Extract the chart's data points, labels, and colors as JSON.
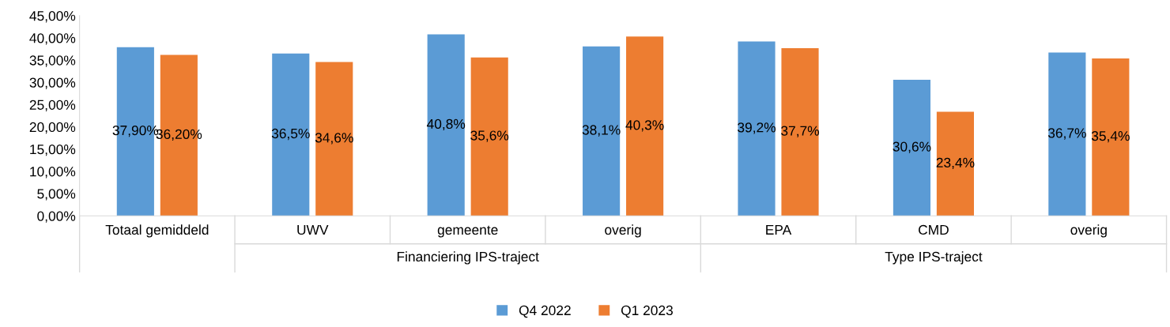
{
  "chart_data": {
    "type": "bar",
    "categories": [
      "Totaal gemiddeld",
      "UWV",
      "gemeente",
      "overig",
      "EPA",
      "CMD",
      "overig"
    ],
    "series": [
      {
        "name": "Q4 2022",
        "color": "#5b9bd5",
        "values": [
          37.9,
          36.5,
          40.8,
          38.1,
          39.2,
          30.6,
          36.7
        ],
        "value_labels": [
          "37,90%",
          "36,5%",
          "40,8%",
          "38,1%",
          "39,2%",
          "30,6%",
          "36,7%"
        ]
      },
      {
        "name": "Q1 2023",
        "color": "#ed7d31",
        "values": [
          36.2,
          34.6,
          35.6,
          40.3,
          37.7,
          23.4,
          35.4
        ],
        "value_labels": [
          "36,20%",
          "34,6%",
          "35,6%",
          "40,3%",
          "37,7%",
          "23,4%",
          "35,4%"
        ]
      }
    ],
    "annotations": [
      "Financiering IPS-traject",
      "Type IPS-traject"
    ],
    "ylim": [
      0,
      45
    ],
    "yticks": [
      {
        "value": 0,
        "label": "0,00%"
      },
      {
        "value": 5,
        "label": "5,00%"
      },
      {
        "value": 10,
        "label": "10,00%"
      },
      {
        "value": 15,
        "label": "15,00%"
      },
      {
        "value": 20,
        "label": "20,00%"
      },
      {
        "value": 25,
        "label": "25,00%"
      },
      {
        "value": 30,
        "label": "30,00%"
      },
      {
        "value": 35,
        "label": "35,00%"
      },
      {
        "value": 40,
        "label": "40,00%"
      },
      {
        "value": 45,
        "label": "45,00%"
      }
    ],
    "grid": false,
    "legend": "bottom"
  }
}
